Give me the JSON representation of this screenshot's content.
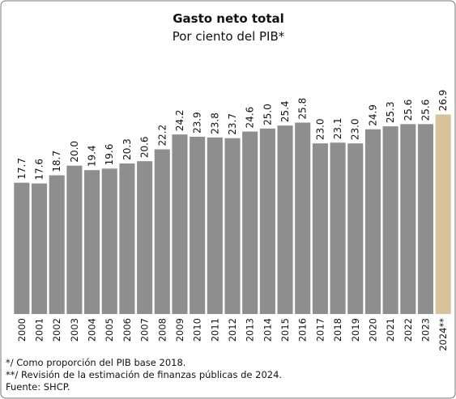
{
  "chart_data": {
    "type": "bar",
    "title": "Gasto neto total",
    "subtitle": "Por ciento del PIB*",
    "categories": [
      "2000",
      "2001",
      "2002",
      "2003",
      "2004",
      "2005",
      "2006",
      "2007",
      "2008",
      "2009",
      "2010",
      "2011",
      "2012",
      "2013",
      "2014",
      "2015",
      "2016",
      "2017",
      "2018",
      "2019",
      "2020",
      "2021",
      "2022",
      "2023",
      "2024**"
    ],
    "values": [
      17.7,
      17.6,
      18.7,
      20.0,
      19.4,
      19.6,
      20.3,
      20.6,
      22.2,
      24.2,
      23.9,
      23.8,
      23.7,
      24.6,
      25.0,
      25.4,
      25.8,
      23.0,
      23.1,
      23.0,
      24.9,
      25.3,
      25.6,
      25.6,
      26.9
    ],
    "value_labels": [
      "17.7",
      "17.6",
      "18.7",
      "20.0",
      "19.4",
      "19.6",
      "20.3",
      "20.6",
      "22.2",
      "24.2",
      "23.9",
      "23.8",
      "23.7",
      "24.6",
      "25.0",
      "25.4",
      "25.8",
      "23.0",
      "23.1",
      "23.0",
      "24.9",
      "25.3",
      "25.6",
      "25.6",
      "26.9"
    ],
    "colors": [
      "#8e8e8e",
      "#8e8e8e",
      "#8e8e8e",
      "#8e8e8e",
      "#8e8e8e",
      "#8e8e8e",
      "#8e8e8e",
      "#8e8e8e",
      "#8e8e8e",
      "#8e8e8e",
      "#8e8e8e",
      "#8e8e8e",
      "#8e8e8e",
      "#8e8e8e",
      "#8e8e8e",
      "#8e8e8e",
      "#8e8e8e",
      "#8e8e8e",
      "#8e8e8e",
      "#8e8e8e",
      "#8e8e8e",
      "#8e8e8e",
      "#8e8e8e",
      "#8e8e8e",
      "#d6c39c"
    ],
    "ylim": [
      0,
      30
    ],
    "notes": [
      "*/ Como proporción del PIB base 2018.",
      "**/ Revisión de la estimación de finanzas públicas de 2024.",
      "Fuente: SHCP."
    ]
  }
}
